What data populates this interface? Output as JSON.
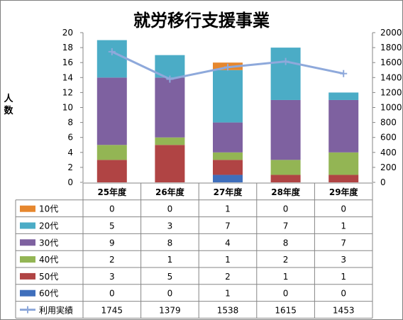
{
  "chart_data": {
    "type": "bar",
    "subtype": "stacked-bar-with-line-and-data-table",
    "title": "就労移行支援事業",
    "ylabel": "人数",
    "ylim": [
      0,
      20
    ],
    "yticks": [
      "0",
      "2",
      "4",
      "6",
      "8",
      "10",
      "12",
      "14",
      "16",
      "18",
      "20"
    ],
    "y2lim": [
      0,
      2000
    ],
    "y2ticks": [
      "0",
      "200",
      "400",
      "600",
      "800",
      "1000",
      "1200",
      "1400",
      "1600",
      "1800",
      "2000"
    ],
    "grid": false,
    "categories": [
      "25年度",
      "26年度",
      "27年度",
      "28年度",
      "29年度"
    ],
    "series": [
      {
        "name": "10代",
        "kind": "bar",
        "axis": "left",
        "color": "#e6872e",
        "values": [
          0,
          0,
          1,
          0,
          0
        ]
      },
      {
        "name": "20代",
        "kind": "bar",
        "axis": "left",
        "color": "#4bacc6",
        "values": [
          5,
          3,
          7,
          7,
          1
        ]
      },
      {
        "name": "30代",
        "kind": "bar",
        "axis": "left",
        "color": "#7e61a0",
        "values": [
          9,
          8,
          4,
          8,
          7
        ]
      },
      {
        "name": "40代",
        "kind": "bar",
        "axis": "left",
        "color": "#93b554",
        "values": [
          2,
          1,
          1,
          2,
          3
        ]
      },
      {
        "name": "50代",
        "kind": "bar",
        "axis": "left",
        "color": "#b04444",
        "values": [
          3,
          5,
          2,
          1,
          1
        ]
      },
      {
        "name": "60代",
        "kind": "bar",
        "axis": "left",
        "color": "#3f6fbc",
        "values": [
          0,
          0,
          1,
          0,
          0
        ]
      },
      {
        "name": "利用実績",
        "kind": "line",
        "axis": "right",
        "color": "#8ea9db",
        "values": [
          1745,
          1379,
          1538,
          1615,
          1453
        ]
      }
    ],
    "stack_order_bottom_to_top": [
      "60代",
      "50代",
      "40代",
      "30代",
      "20代",
      "10代"
    ],
    "table_row_order": [
      "10代",
      "20代",
      "30代",
      "40代",
      "50代",
      "60代",
      "利用実績"
    ]
  }
}
